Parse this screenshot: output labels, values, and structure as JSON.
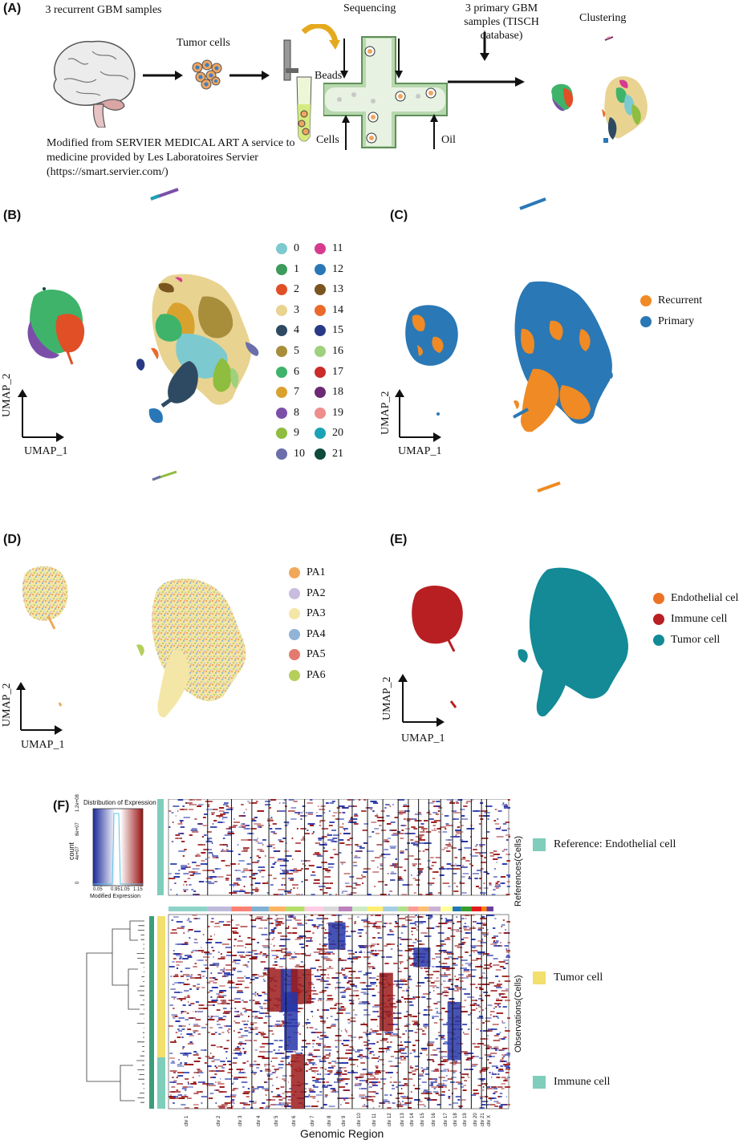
{
  "panels": {
    "A": {
      "label": "(A)",
      "recurrent_samples": "3 recurrent GBM samples",
      "tumor_cells": "Tumor cells",
      "sequencing": "Sequencing",
      "primary_samples": "3 primary GBM samples (TISCH database)",
      "clustering": "Clustering",
      "beads": "Beads",
      "cells": "Cells",
      "oil": "Oil",
      "credit_line1": "Modified from SERVIER MEDICAL ART A service to",
      "credit_line2": "medicine provided by Les Laboratoires Servier",
      "credit_line3": "(https://smart.servier.com/)"
    },
    "B": {
      "label": "(B)",
      "axis_x": "UMAP_1",
      "axis_y": "UMAP_2",
      "clusters": [
        {
          "id": "0",
          "color": "#7dc9d0"
        },
        {
          "id": "1",
          "color": "#3d9b5b"
        },
        {
          "id": "2",
          "color": "#e04f26"
        },
        {
          "id": "3",
          "color": "#e8d391"
        },
        {
          "id": "4",
          "color": "#2e4a62"
        },
        {
          "id": "5",
          "color": "#a88d3b"
        },
        {
          "id": "6",
          "color": "#3fb36a"
        },
        {
          "id": "7",
          "color": "#d9a22f"
        },
        {
          "id": "8",
          "color": "#7b4fa8"
        },
        {
          "id": "9",
          "color": "#8ebd3f"
        },
        {
          "id": "10",
          "color": "#6b6eab"
        },
        {
          "id": "11",
          "color": "#d63b8f"
        },
        {
          "id": "12",
          "color": "#2a77b8"
        },
        {
          "id": "13",
          "color": "#7a5520"
        },
        {
          "id": "14",
          "color": "#ea6a2b"
        },
        {
          "id": "15",
          "color": "#283a86"
        },
        {
          "id": "16",
          "color": "#9fd07d"
        },
        {
          "id": "17",
          "color": "#cc2b2b"
        },
        {
          "id": "18",
          "color": "#6b2a73"
        },
        {
          "id": "19",
          "color": "#ef8c8c"
        },
        {
          "id": "20",
          "color": "#1aa3b4"
        },
        {
          "id": "21",
          "color": "#0e4a3c"
        }
      ]
    },
    "C": {
      "label": "(C)",
      "axis_x": "UMAP_1",
      "axis_y": "UMAP_2",
      "legend": [
        {
          "name": "Recurrent",
          "color": "#f08a24"
        },
        {
          "name": "Primary",
          "color": "#2a78b5"
        }
      ]
    },
    "D": {
      "label": "(D)",
      "axis_x": "UMAP_1",
      "axis_y": "UMAP_2",
      "legend": [
        {
          "name": "PA1",
          "color": "#f0a95a"
        },
        {
          "name": "PA2",
          "color": "#c8bde0"
        },
        {
          "name": "PA3",
          "color": "#f4e6a6"
        },
        {
          "name": "PA4",
          "color": "#8fb4d6"
        },
        {
          "name": "PA5",
          "color": "#e47a6e"
        },
        {
          "name": "PA6",
          "color": "#b6cf5b"
        }
      ]
    },
    "E": {
      "label": "(E)",
      "axis_x": "UMAP_1",
      "axis_y": "UMAP_2",
      "legend": [
        {
          "name": "Endothelial cell",
          "color": "#ec7326"
        },
        {
          "name": "Immune cell",
          "color": "#b81f23"
        },
        {
          "name": "Tumor cell",
          "color": "#138a96"
        }
      ]
    },
    "F": {
      "label": "(F)",
      "color_key_title": "Distribution of Expression",
      "color_key_xlabel": "Modified Expression",
      "color_key_ylabel": "count",
      "color_key_ticks": [
        "0.05",
        "0.95",
        "1.05",
        "1.15"
      ],
      "color_key_yticks": [
        "0",
        "4e+07",
        "8e+07",
        "1.2e+08"
      ],
      "references_label": "References(Cells)",
      "observations_label": "Observations(Cells)",
      "xlabel": "Genomic Region",
      "chromosomes": [
        "chr 1",
        "chr 2",
        "chr 3",
        "chr 4",
        "chr 5",
        "chr 6",
        "chr 7",
        "chr 8",
        "chr 9",
        "chr 10",
        "chr 11",
        "chr 12",
        "chr 13",
        "chr 14",
        "chr 15",
        "chr 16",
        "chr 17",
        "chr 18",
        "chr 19",
        "chr 20",
        "chr 21",
        "chr X"
      ],
      "legend": [
        {
          "name": "Reference: Endothelial cell",
          "color": "#7fcdbb"
        },
        {
          "name": "Tumor cell",
          "color": "#f2df6d"
        },
        {
          "name": "Immune cell",
          "color": "#7fcdbb"
        }
      ]
    }
  }
}
